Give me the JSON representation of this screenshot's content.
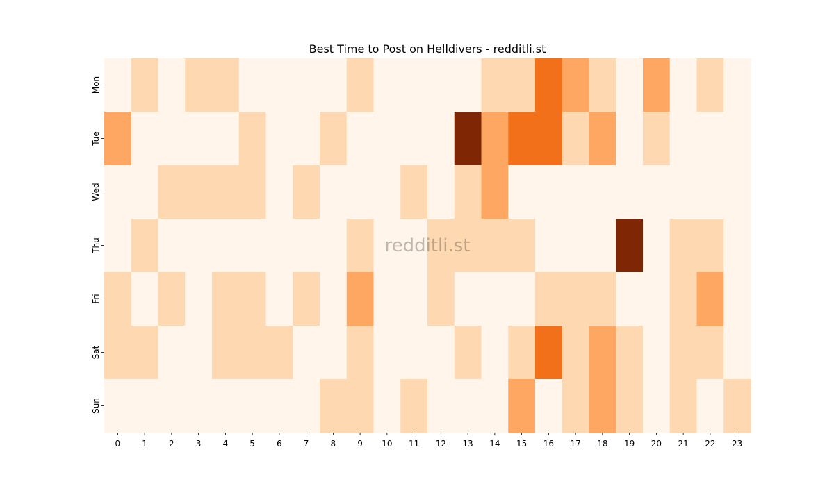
{
  "chart_data": {
    "type": "heatmap",
    "title": "Best Time to Post on Helldivers - redditli.st",
    "xlabel": "",
    "ylabel": "",
    "x_categories": [
      "0",
      "1",
      "2",
      "3",
      "4",
      "5",
      "6",
      "7",
      "8",
      "9",
      "10",
      "11",
      "12",
      "13",
      "14",
      "15",
      "16",
      "17",
      "18",
      "19",
      "20",
      "21",
      "22",
      "23"
    ],
    "y_categories": [
      "Mon",
      "Tue",
      "Wed",
      "Thu",
      "Fri",
      "Sat",
      "Sun"
    ],
    "values": [
      [
        0,
        1,
        0,
        1,
        1,
        0,
        0,
        0,
        0,
        1,
        0,
        0,
        0,
        0,
        1,
        1,
        4,
        2,
        1,
        0,
        2,
        0,
        1,
        0
      ],
      [
        2,
        0,
        0,
        0,
        0,
        1,
        0,
        0,
        1,
        0,
        0,
        0,
        0,
        5,
        2,
        4,
        4,
        1,
        2,
        0,
        1,
        0,
        0,
        0
      ],
      [
        0,
        0,
        1,
        1,
        1,
        1,
        0,
        1,
        0,
        0,
        0,
        1,
        0,
        1,
        2,
        0,
        0,
        0,
        0,
        0,
        0,
        0,
        0,
        0
      ],
      [
        0,
        1,
        0,
        0,
        0,
        0,
        0,
        0,
        0,
        1,
        0,
        0,
        1,
        1,
        1,
        1,
        0,
        0,
        0,
        5,
        0,
        1,
        1,
        0
      ],
      [
        1,
        0,
        1,
        0,
        1,
        1,
        0,
        1,
        0,
        2,
        0,
        0,
        1,
        0,
        0,
        0,
        1,
        1,
        1,
        0,
        0,
        1,
        2,
        0
      ],
      [
        1,
        1,
        0,
        0,
        1,
        1,
        1,
        0,
        0,
        1,
        0,
        0,
        0,
        1,
        0,
        1,
        4,
        1,
        2,
        1,
        0,
        1,
        1,
        0
      ],
      [
        0,
        0,
        0,
        0,
        0,
        0,
        0,
        0,
        1,
        1,
        0,
        1,
        0,
        0,
        0,
        2,
        0,
        1,
        2,
        1,
        0,
        1,
        0,
        1
      ]
    ],
    "colormap": "Oranges",
    "level_colors": [
      "#fff5eb",
      "#fdd8b0",
      "#fda762",
      "#f7882f",
      "#f3701b",
      "#7f2704"
    ],
    "vmin": 0,
    "vmax": 5,
    "grid": false,
    "legend": "none",
    "watermark": "redditli.st"
  }
}
